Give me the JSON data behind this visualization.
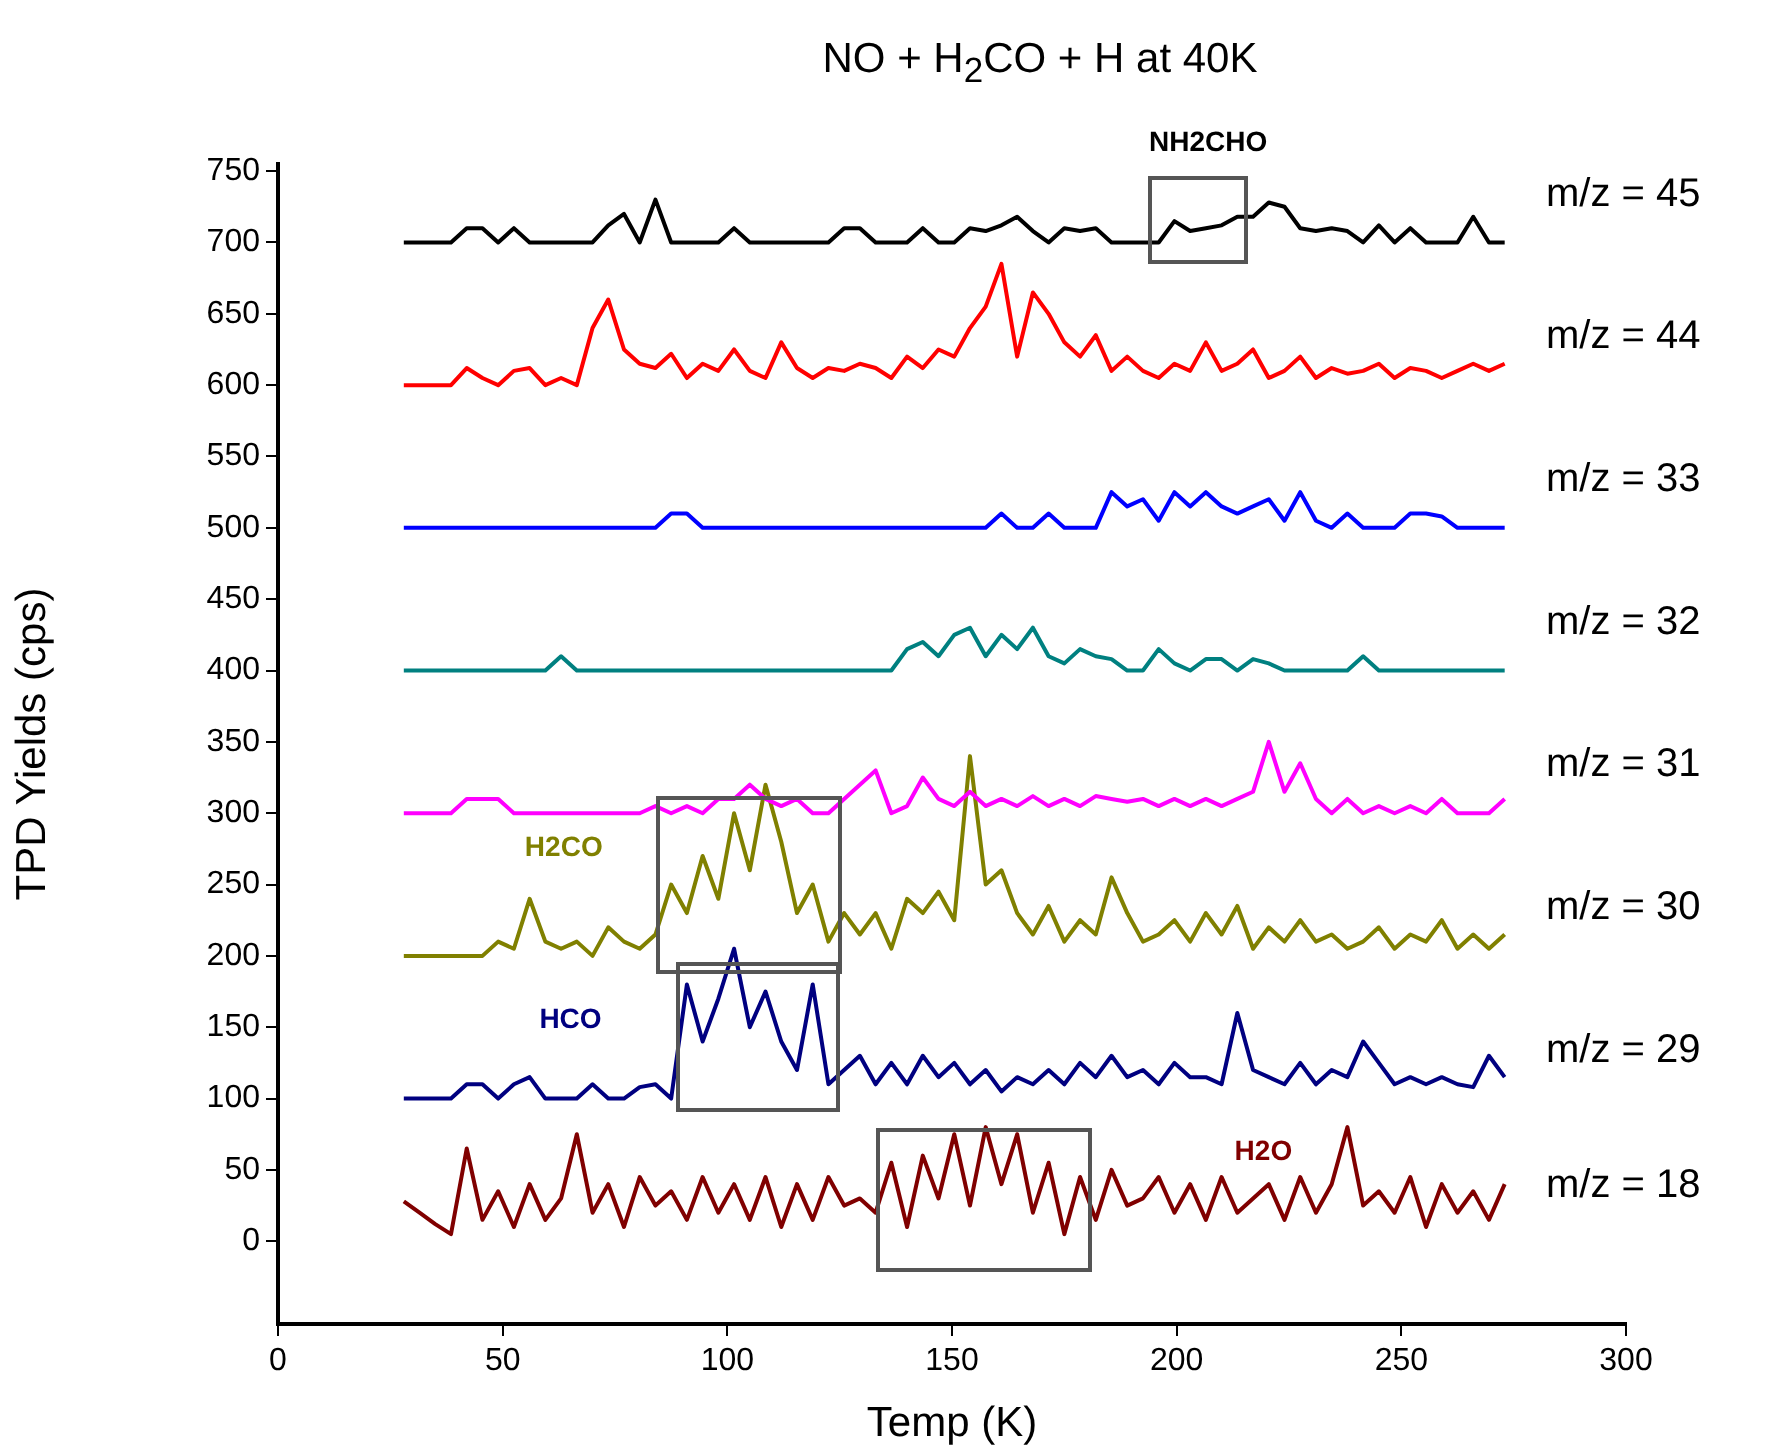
{
  "chart_data": {
    "type": "line",
    "title": "NO + H$_{2}$CO + H at 40K",
    "xlabel": "Temp (K)",
    "ylabel": "TPD Yields (cps)",
    "xlim": [
      0,
      300
    ],
    "xticks": [
      0,
      50,
      100,
      150,
      200,
      250,
      300
    ],
    "ylim": [
      -58,
      755
    ],
    "yticks": [
      0,
      50,
      100,
      150,
      200,
      250,
      300,
      350,
      400,
      450,
      500,
      550,
      600,
      650,
      700,
      750
    ],
    "x": [
      28,
      31.5,
      35,
      38.5,
      42,
      45.5,
      49,
      52.5,
      56,
      59.5,
      63,
      66.5,
      70,
      73.5,
      77,
      80.5,
      84,
      87.5,
      91,
      94.5,
      98,
      101.5,
      105,
      108.5,
      112,
      115.5,
      119,
      122.5,
      126,
      129.5,
      133,
      136.5,
      140,
      143.5,
      147,
      150.5,
      154,
      157.5,
      161,
      164.5,
      168,
      171.5,
      175,
      178.5,
      182,
      185.5,
      189,
      192.5,
      196,
      199.5,
      203,
      206.5,
      210,
      213.5,
      217,
      220.5,
      224,
      227.5,
      231,
      234.5,
      238,
      241.5,
      245,
      248.5,
      252,
      255.5,
      259,
      262.5,
      266,
      269.5,
      273
    ],
    "series": [
      {
        "name": "m/z = 45",
        "color": "#000000",
        "values": [
          700,
          700,
          700,
          700,
          710,
          710,
          700,
          710,
          700,
          700,
          700,
          700,
          700,
          712,
          720,
          700,
          730,
          700,
          700,
          700,
          700,
          710,
          700,
          700,
          700,
          700,
          700,
          700,
          710,
          710,
          700,
          700,
          700,
          710,
          700,
          700,
          710,
          708,
          712,
          718,
          708,
          700,
          710,
          708,
          710,
          700,
          700,
          700,
          700,
          715,
          708,
          710,
          712,
          718,
          718,
          728,
          725,
          710,
          708,
          710,
          708,
          700,
          712,
          700,
          710,
          700,
          700,
          700,
          718,
          700,
          700
        ]
      },
      {
        "name": "m/z = 44",
        "color": "#ff0000",
        "values": [
          600,
          600,
          600,
          600,
          612,
          605,
          600,
          610,
          612,
          600,
          605,
          600,
          640,
          660,
          625,
          615,
          612,
          622,
          605,
          615,
          610,
          625,
          610,
          605,
          630,
          612,
          605,
          612,
          610,
          615,
          612,
          605,
          620,
          612,
          625,
          620,
          640,
          655,
          685,
          620,
          665,
          650,
          630,
          620,
          635,
          610,
          620,
          610,
          605,
          615,
          610,
          630,
          610,
          615,
          625,
          605,
          610,
          620,
          605,
          612,
          608,
          610,
          615,
          605,
          612,
          610,
          605,
          610,
          615,
          610,
          615
        ]
      },
      {
        "name": "m/z = 33",
        "color": "#0000ff",
        "values": [
          500,
          500,
          500,
          500,
          500,
          500,
          500,
          500,
          500,
          500,
          500,
          500,
          500,
          500,
          500,
          500,
          500,
          510,
          510,
          500,
          500,
          500,
          500,
          500,
          500,
          500,
          500,
          500,
          500,
          500,
          500,
          500,
          500,
          500,
          500,
          500,
          500,
          500,
          510,
          500,
          500,
          510,
          500,
          500,
          500,
          525,
          515,
          520,
          505,
          525,
          515,
          525,
          515,
          510,
          515,
          520,
          505,
          525,
          505,
          500,
          510,
          500,
          500,
          500,
          510,
          510,
          508,
          500,
          500,
          500,
          500
        ]
      },
      {
        "name": "m/z = 32",
        "color": "#008080",
        "values": [
          400,
          400,
          400,
          400,
          400,
          400,
          400,
          400,
          400,
          400,
          410,
          400,
          400,
          400,
          400,
          400,
          400,
          400,
          400,
          400,
          400,
          400,
          400,
          400,
          400,
          400,
          400,
          400,
          400,
          400,
          400,
          400,
          415,
          420,
          410,
          425,
          430,
          410,
          425,
          415,
          430,
          410,
          405,
          415,
          410,
          408,
          400,
          400,
          415,
          405,
          400,
          408,
          408,
          400,
          408,
          405,
          400,
          400,
          400,
          400,
          400,
          410,
          400,
          400,
          400,
          400,
          400,
          400,
          400,
          400,
          400
        ]
      },
      {
        "name": "m/z = 31",
        "color": "#ff00ff",
        "values": [
          300,
          300,
          300,
          300,
          310,
          310,
          310,
          300,
          300,
          300,
          300,
          300,
          300,
          300,
          300,
          300,
          305,
          300,
          305,
          300,
          310,
          310,
          320,
          310,
          305,
          310,
          300,
          300,
          310,
          320,
          330,
          300,
          305,
          325,
          310,
          305,
          315,
          305,
          310,
          305,
          312,
          305,
          310,
          305,
          312,
          310,
          308,
          310,
          305,
          310,
          305,
          310,
          305,
          310,
          315,
          350,
          315,
          335,
          310,
          300,
          310,
          300,
          305,
          300,
          305,
          300,
          310,
          300,
          300,
          300,
          310
        ]
      },
      {
        "name": "m/z = 30",
        "color": "#808000",
        "values": [
          200,
          200,
          200,
          200,
          200,
          200,
          210,
          205,
          240,
          210,
          205,
          210,
          200,
          220,
          210,
          205,
          215,
          250,
          230,
          270,
          240,
          300,
          260,
          320,
          280,
          230,
          250,
          210,
          230,
          215,
          230,
          205,
          240,
          230,
          245,
          225,
          340,
          250,
          260,
          230,
          215,
          235,
          210,
          225,
          215,
          255,
          230,
          210,
          215,
          225,
          210,
          230,
          215,
          235,
          205,
          220,
          210,
          225,
          210,
          215,
          205,
          210,
          220,
          205,
          215,
          210,
          225,
          205,
          215,
          205,
          215
        ]
      },
      {
        "name": "m/z = 29",
        "color": "#000080",
        "values": [
          100,
          100,
          100,
          100,
          110,
          110,
          100,
          110,
          115,
          100,
          100,
          100,
          110,
          100,
          100,
          108,
          110,
          100,
          180,
          140,
          170,
          205,
          150,
          175,
          140,
          120,
          180,
          110,
          120,
          130,
          110,
          125,
          110,
          130,
          115,
          125,
          110,
          120,
          105,
          115,
          110,
          120,
          110,
          125,
          115,
          130,
          115,
          120,
          110,
          125,
          115,
          115,
          110,
          160,
          120,
          115,
          110,
          125,
          110,
          120,
          115,
          140,
          125,
          110,
          115,
          110,
          115,
          110,
          108,
          130,
          115
        ]
      },
      {
        "name": "m/z = 18",
        "color": "#800000",
        "values": [
          28,
          20,
          12,
          5,
          65,
          15,
          35,
          10,
          40,
          15,
          30,
          75,
          20,
          40,
          10,
          45,
          25,
          35,
          15,
          45,
          20,
          40,
          15,
          45,
          10,
          40,
          15,
          45,
          25,
          30,
          20,
          55,
          10,
          60,
          30,
          75,
          25,
          80,
          40,
          75,
          20,
          55,
          5,
          45,
          15,
          50,
          25,
          30,
          45,
          20,
          40,
          15,
          45,
          20,
          30,
          40,
          15,
          45,
          20,
          40,
          80,
          25,
          35,
          20,
          45,
          10,
          40,
          20,
          35,
          15,
          40
        ]
      }
    ],
    "annotations": [
      "NH2CHO",
      "H2CO",
      "HCO",
      "H2O"
    ]
  }
}
